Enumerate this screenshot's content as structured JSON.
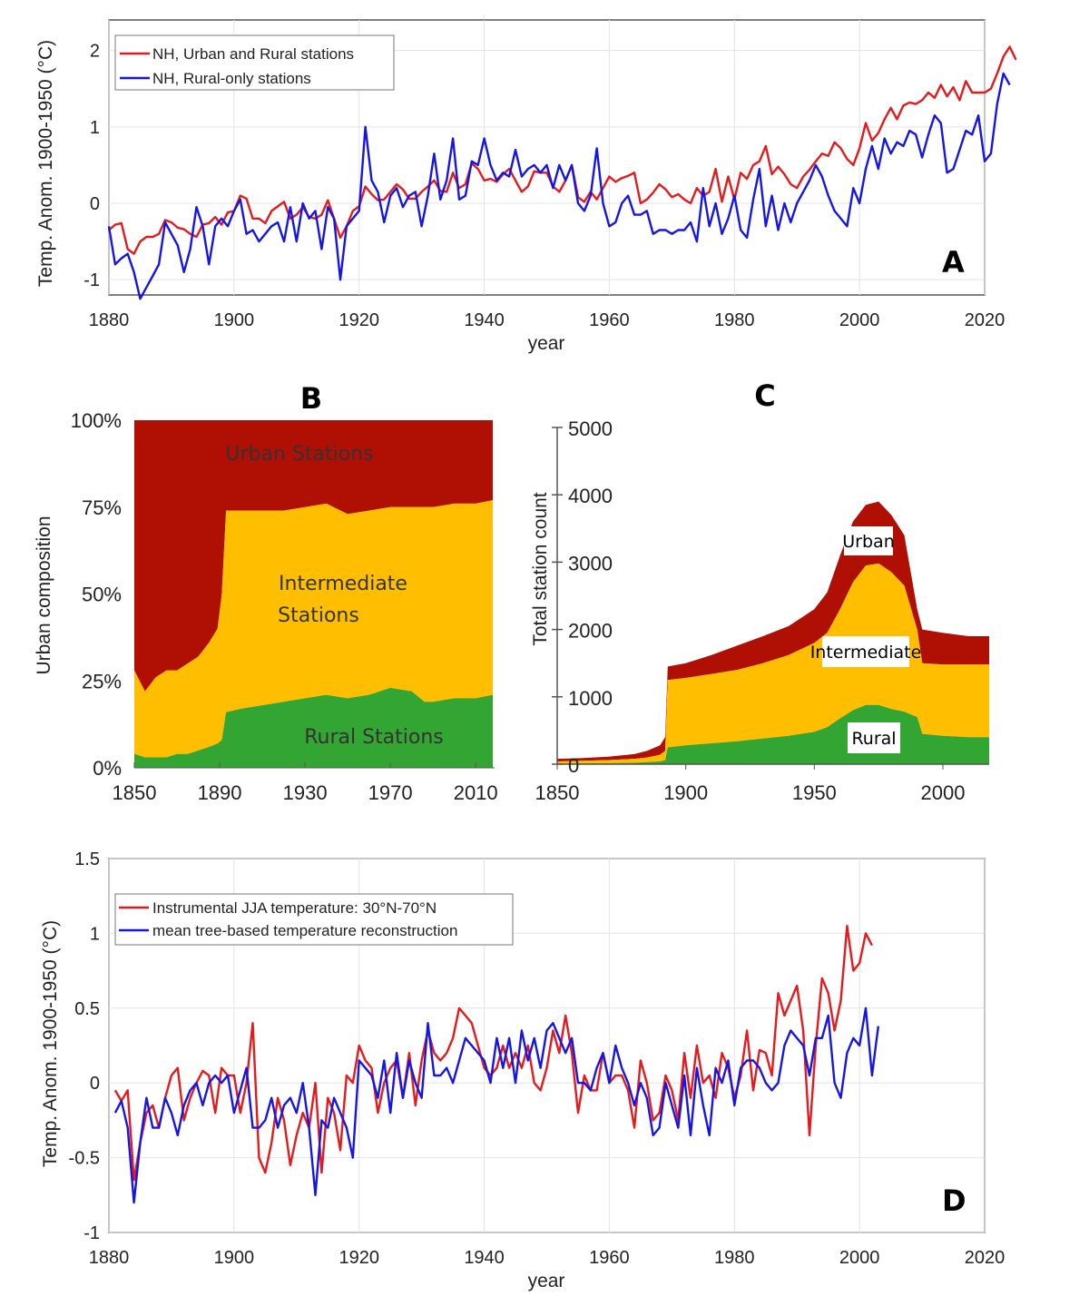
{
  "colors": {
    "red": "#e41a1c",
    "blue": "#1515e8",
    "urban": "#b00f04",
    "intermediate": "#ffbf00",
    "rural": "#33a532"
  },
  "chart_data": [
    {
      "id": "A",
      "type": "line",
      "panel_label": "A",
      "title": "",
      "xlabel": "year",
      "ylabel": "Temp. Anom. 1900-1950 (°C)",
      "xlim": [
        1880,
        2020
      ],
      "ylim": [
        -1.2,
        2.4
      ],
      "xticks": [
        1880,
        1900,
        1920,
        1940,
        1960,
        1980,
        2000,
        2020
      ],
      "yticks": [
        -1,
        0,
        1,
        2
      ],
      "grid": true,
      "legend_position": "top-left",
      "x_start": 1880,
      "series": [
        {
          "name": "NH, Urban and Rural stations",
          "color": "red",
          "values": [
            -0.35,
            -0.28,
            -0.26,
            -0.6,
            -0.66,
            -0.5,
            -0.44,
            -0.44,
            -0.4,
            -0.22,
            -0.25,
            -0.32,
            -0.34,
            -0.4,
            -0.44,
            -0.28,
            -0.26,
            -0.18,
            -0.28,
            -0.12,
            -0.1,
            0.1,
            0.06,
            -0.2,
            -0.2,
            -0.26,
            -0.1,
            -0.04,
            0.02,
            -0.2,
            -0.15,
            -0.05,
            -0.18,
            -0.2,
            -0.15,
            0.04,
            -0.2,
            -0.45,
            -0.3,
            -0.1,
            -0.04,
            0.22,
            0.12,
            0.04,
            0.05,
            0.15,
            0.25,
            0.18,
            0.06,
            0.06,
            0.15,
            0.22,
            0.3,
            0.16,
            0.15,
            0.4,
            0.2,
            0.25,
            0.52,
            0.45,
            0.3,
            0.32,
            0.28,
            0.38,
            0.45,
            0.3,
            0.15,
            0.22,
            0.42,
            0.4,
            0.4,
            0.22,
            0.15,
            0.3,
            0.5,
            0.08,
            0.02,
            0.15,
            0.05,
            0.2,
            0.35,
            0.28,
            0.33,
            0.36,
            0.4,
            0.0,
            0.05,
            0.14,
            0.25,
            0.18,
            0.08,
            0.12,
            0.05,
            0.0,
            0.2,
            0.1,
            0.15,
            0.45,
            0.02,
            0.35,
            0.05,
            0.4,
            0.32,
            0.5,
            0.55,
            0.75,
            0.38,
            0.48,
            0.38,
            0.25,
            0.2,
            0.35,
            0.44,
            0.55,
            0.65,
            0.62,
            0.8,
            0.72,
            0.58,
            0.5,
            0.72,
            1.05,
            0.82,
            0.92,
            1.1,
            1.25,
            1.1,
            1.28,
            1.32,
            1.3,
            1.35,
            1.45,
            1.38,
            1.55,
            1.4,
            1.52,
            1.35,
            1.6,
            1.45,
            1.45,
            1.45,
            1.5,
            1.7,
            1.92,
            2.05,
            1.88
          ]
        },
        {
          "name": "NH, Rural-only stations",
          "color": "blue",
          "values": [
            -0.3,
            -0.8,
            -0.72,
            -0.66,
            -0.9,
            -1.25,
            -1.1,
            -0.95,
            -0.8,
            -0.25,
            -0.4,
            -0.55,
            -0.9,
            -0.6,
            -0.05,
            -0.3,
            -0.8,
            -0.3,
            -0.2,
            -0.3,
            -0.1,
            0.05,
            -0.4,
            -0.35,
            -0.5,
            -0.4,
            -0.3,
            -0.25,
            -0.5,
            -0.05,
            -0.5,
            0.0,
            -0.2,
            -0.1,
            -0.6,
            -0.05,
            -0.2,
            -1.0,
            -0.3,
            -0.2,
            -0.1,
            1.0,
            0.3,
            0.15,
            -0.25,
            0.1,
            0.2,
            -0.05,
            0.1,
            0.15,
            -0.3,
            0.1,
            0.65,
            0.05,
            0.3,
            0.85,
            0.05,
            0.1,
            0.55,
            0.5,
            0.85,
            0.5,
            0.3,
            0.4,
            0.35,
            0.7,
            0.35,
            0.45,
            0.5,
            0.4,
            0.5,
            0.2,
            0.5,
            0.3,
            0.5,
            0.0,
            -0.1,
            0.1,
            0.72,
            0.0,
            -0.3,
            -0.25,
            0.0,
            0.1,
            -0.15,
            -0.15,
            -0.1,
            -0.4,
            -0.35,
            -0.35,
            -0.4,
            -0.35,
            -0.35,
            -0.25,
            -0.5,
            0.2,
            -0.3,
            0.0,
            -0.4,
            -0.2,
            0.1,
            -0.35,
            -0.45,
            0.05,
            0.45,
            -0.3,
            0.1,
            -0.35,
            0.0,
            -0.25,
            0.0,
            0.15,
            0.3,
            0.5,
            0.35,
            0.1,
            -0.1,
            -0.2,
            -0.3,
            0.2,
            0.0,
            0.45,
            0.75,
            0.45,
            0.85,
            0.65,
            0.8,
            0.75,
            0.95,
            0.9,
            0.6,
            0.9,
            1.15,
            1.05,
            0.4,
            0.45,
            0.7,
            0.95,
            0.9,
            1.15,
            0.55,
            0.65,
            1.3,
            1.7,
            1.55
          ]
        }
      ]
    },
    {
      "id": "B",
      "type": "area",
      "panel_label": "B",
      "title": "",
      "xlabel": "",
      "ylabel": "Urban composition",
      "xlim": [
        1850,
        2018
      ],
      "ylim": [
        0,
        100
      ],
      "xticks": [
        1850,
        1890,
        1930,
        1970,
        2010
      ],
      "ytick_labels": [
        "0%",
        "25%",
        "50%",
        "75%",
        "100%"
      ],
      "yticks": [
        0,
        25,
        50,
        75,
        100
      ],
      "stacked": true,
      "region_labels": {
        "urban": "Urban Stations",
        "intermediate_1": "Intermediate",
        "intermediate_2": "Stations",
        "rural": "Rural Stations"
      },
      "years": [
        1850,
        1855,
        1860,
        1865,
        1870,
        1875,
        1880,
        1885,
        1889,
        1891,
        1893,
        1900,
        1910,
        1920,
        1930,
        1940,
        1950,
        1960,
        1970,
        1980,
        1986,
        1990,
        2000,
        2010,
        2018
      ],
      "rural_pct": [
        4,
        3,
        3,
        3,
        4,
        4,
        5,
        6,
        7,
        8,
        16,
        17,
        18,
        19,
        20,
        21,
        20,
        21,
        23,
        22,
        19,
        19,
        20,
        20,
        21
      ],
      "rural_plus_intermediate_pct": [
        28,
        22,
        26,
        28,
        28,
        30,
        32,
        36,
        40,
        50,
        74,
        74,
        74,
        74,
        75,
        76,
        73,
        74,
        75,
        75,
        75,
        75,
        76,
        76,
        77
      ]
    },
    {
      "id": "C",
      "type": "area",
      "panel_label": "C",
      "title": "",
      "xlabel": "",
      "ylabel": "Total station count",
      "xlim": [
        1850,
        2018
      ],
      "ylim": [
        0,
        5000
      ],
      "xticks": [
        1850,
        1900,
        1950,
        2000
      ],
      "yticks": [
        0,
        1000,
        2000,
        3000,
        4000,
        5000
      ],
      "stacked": true,
      "region_labels": {
        "urban": "Urban",
        "intermediate": "Intermediate",
        "rural": "Rural"
      },
      "years": [
        1850,
        1860,
        1870,
        1880,
        1885,
        1890,
        1892,
        1893,
        1900,
        1910,
        1920,
        1930,
        1940,
        1950,
        1955,
        1960,
        1965,
        1970,
        1975,
        1980,
        1985,
        1990,
        1992,
        2000,
        2010,
        2018
      ],
      "rural": [
        10,
        12,
        15,
        20,
        30,
        40,
        60,
        250,
        280,
        310,
        340,
        380,
        420,
        480,
        550,
        680,
        800,
        880,
        880,
        820,
        780,
        700,
        450,
        420,
        400,
        400
      ],
      "rural_plus_intermediate": [
        40,
        50,
        60,
        80,
        100,
        140,
        200,
        1250,
        1280,
        1340,
        1400,
        1500,
        1620,
        1800,
        1950,
        2300,
        2700,
        2950,
        2980,
        2850,
        2650,
        2000,
        1500,
        1480,
        1480,
        1480
      ],
      "total": [
        80,
        90,
        110,
        150,
        200,
        280,
        400,
        1450,
        1500,
        1620,
        1760,
        1900,
        2050,
        2300,
        2550,
        3100,
        3600,
        3850,
        3900,
        3700,
        3400,
        2300,
        2000,
        1950,
        1900,
        1900
      ]
    },
    {
      "id": "D",
      "type": "line",
      "panel_label": "D",
      "title": "",
      "xlabel": "year",
      "ylabel": "Temp. Anom. 1900-1950 (°C)",
      "xlim": [
        1880,
        2020
      ],
      "ylim": [
        -1,
        1.5
      ],
      "xticks": [
        1880,
        1900,
        1920,
        1940,
        1960,
        1980,
        2000,
        2020
      ],
      "yticks": [
        -1,
        -0.5,
        0,
        0.5,
        1,
        1.5
      ],
      "ytick_labels": [
        "-1",
        "-0.5",
        "0",
        "0.5",
        "1",
        "1.5"
      ],
      "grid": true,
      "legend_position": "top-left",
      "x_start": 1881,
      "series": [
        {
          "name": "Instrumental JJA temperature: 30°N-70°N",
          "color": "red",
          "values": [
            -0.05,
            -0.12,
            -0.05,
            -0.65,
            -0.4,
            -0.2,
            -0.15,
            -0.3,
            -0.1,
            0.05,
            0.1,
            -0.25,
            -0.1,
            0.0,
            0.08,
            0.05,
            -0.2,
            0.1,
            0.05,
            0.05,
            -0.2,
            0.0,
            0.4,
            -0.5,
            -0.6,
            -0.4,
            -0.1,
            -0.25,
            -0.55,
            -0.35,
            -0.2,
            -0.3,
            0.0,
            -0.6,
            -0.1,
            -0.2,
            -0.45,
            0.05,
            0.0,
            0.25,
            0.15,
            0.1,
            -0.2,
            0.0,
            0.1,
            0.15,
            -0.1,
            0.2,
            -0.15,
            0.15,
            0.35,
            0.2,
            0.15,
            0.2,
            0.3,
            0.5,
            0.45,
            0.4,
            0.25,
            0.1,
            0.05,
            0.1,
            0.25,
            0.1,
            0.2,
            0.1,
            0.25,
            0.0,
            -0.05,
            0.1,
            0.35,
            0.2,
            0.45,
            0.2,
            -0.2,
            0.05,
            -0.05,
            -0.05,
            0.2,
            0.0,
            0.05,
            0.05,
            -0.05,
            -0.3,
            0.15,
            0.0,
            -0.25,
            -0.2,
            0.05,
            -0.05,
            -0.25,
            0.2,
            -0.1,
            0.25,
            0.0,
            0.05,
            -0.1,
            0.2,
            0.1,
            -0.1,
            0.05,
            0.35,
            -0.05,
            0.22,
            0.2,
            0.05,
            0.6,
            0.45,
            0.55,
            0.65,
            0.35,
            -0.35,
            0.25,
            0.7,
            0.6,
            0.35,
            0.55,
            1.05,
            0.75,
            0.8,
            1.0,
            0.92
          ]
        },
        {
          "name": "mean tree-based temperature reconstruction",
          "color": "blue",
          "values": [
            -0.2,
            -0.12,
            -0.3,
            -0.8,
            -0.4,
            -0.1,
            -0.3,
            -0.3,
            -0.1,
            -0.2,
            -0.35,
            -0.15,
            -0.05,
            0.0,
            -0.15,
            0.0,
            0.05,
            0.0,
            0.05,
            -0.2,
            -0.05,
            0.1,
            -0.3,
            -0.3,
            -0.25,
            -0.1,
            -0.3,
            -0.15,
            -0.1,
            -0.2,
            0.0,
            -0.3,
            -0.75,
            -0.25,
            -0.3,
            -0.1,
            -0.2,
            -0.3,
            -0.5,
            0.15,
            0.1,
            0.05,
            -0.1,
            0.15,
            -0.2,
            0.2,
            -0.1,
            0.15,
            0.0,
            -0.1,
            0.4,
            0.05,
            0.05,
            0.1,
            0.0,
            0.15,
            0.3,
            0.25,
            0.2,
            0.15,
            0.0,
            0.3,
            0.1,
            0.3,
            0.0,
            0.35,
            0.15,
            0.3,
            0.1,
            0.35,
            0.4,
            0.3,
            0.2,
            0.3,
            0.0,
            0.0,
            -0.05,
            0.1,
            0.2,
            0.0,
            0.25,
            0.1,
            0.0,
            -0.15,
            0.0,
            -0.1,
            -0.35,
            -0.3,
            0.0,
            -0.15,
            -0.3,
            0.05,
            -0.35,
            0.1,
            -0.15,
            -0.35,
            0.1,
            0.0,
            0.15,
            -0.15,
            0.1,
            0.15,
            0.15,
            0.1,
            0.0,
            -0.05,
            0.0,
            0.25,
            0.35,
            0.3,
            0.25,
            0.05,
            0.3,
            0.3,
            0.45,
            0.0,
            -0.1,
            0.2,
            0.3,
            0.25,
            0.5,
            0.05,
            0.38
          ]
        }
      ]
    }
  ]
}
